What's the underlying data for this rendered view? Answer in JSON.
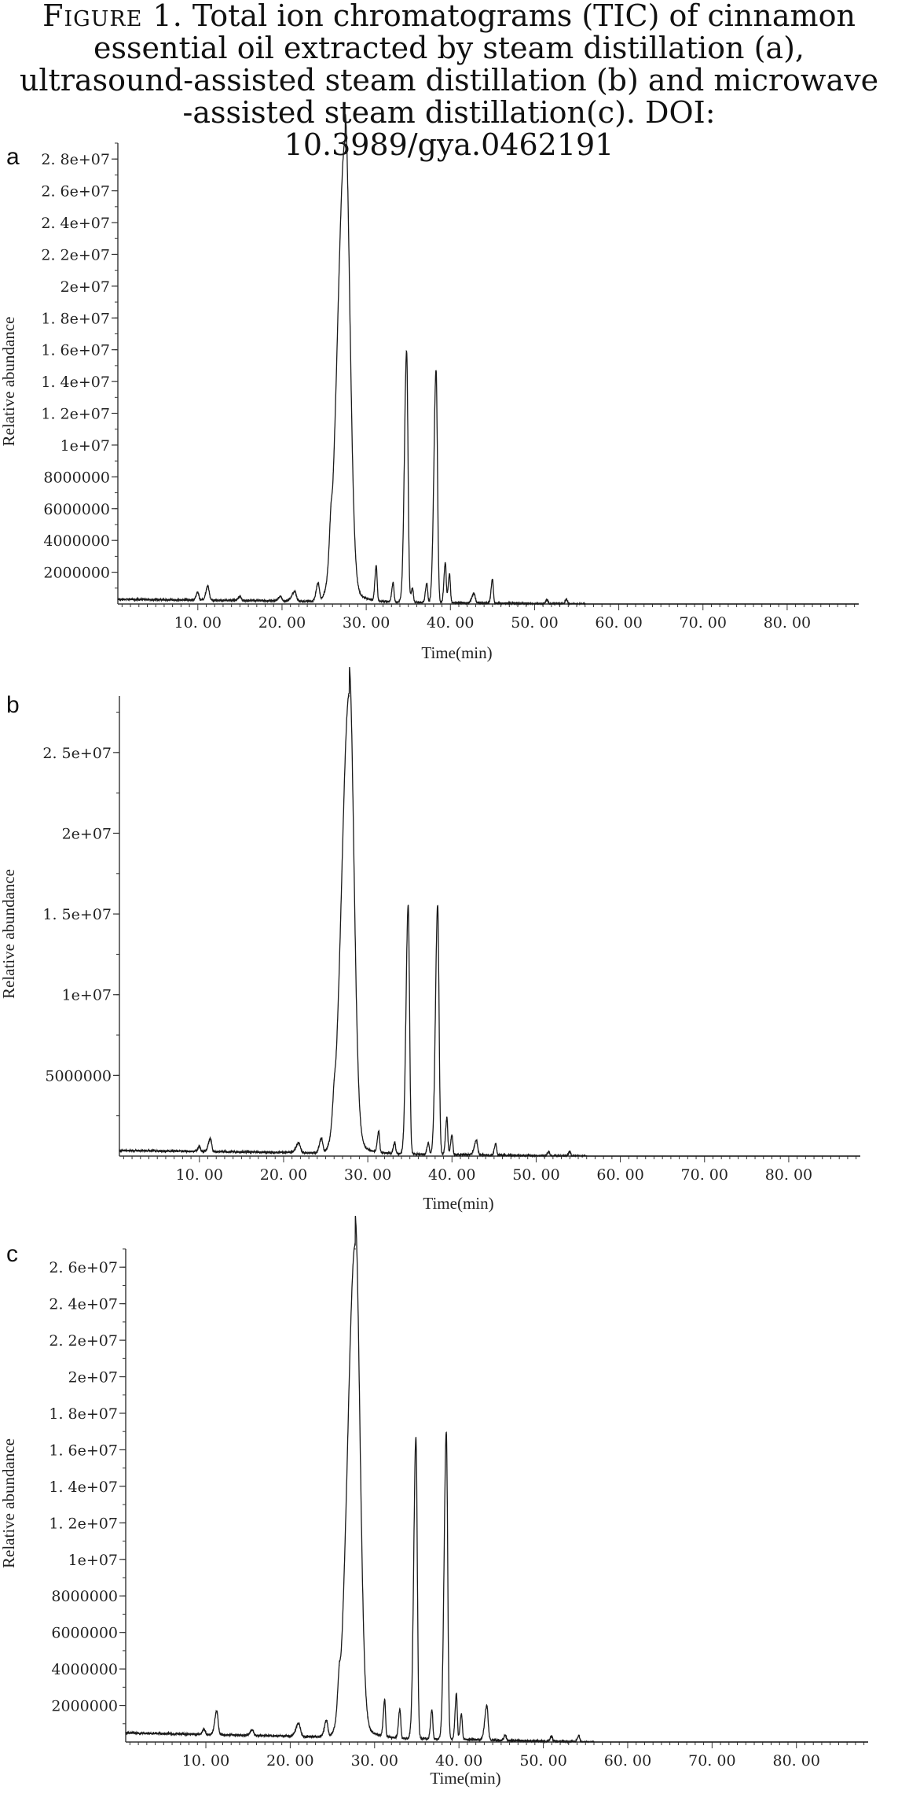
{
  "caption": {
    "figure_label": "Figure 1.",
    "text": "Total ion chromatograms (TIC) of cinnamon essential oil extracted by steam distillation (a), ultrasound-assisted steam distillation (b) and microwave -assisted steam distillation(c). DOI: 10.3989/gya.0462191"
  },
  "colors": {
    "trace": "#1a1a1a",
    "axis": "#333333"
  },
  "chart_data": [
    {
      "panel": "a",
      "type": "line",
      "xlabel": "Time(min)",
      "ylabel": "Relative abundance",
      "xlim": [
        0.5,
        88.5
      ],
      "ylim": [
        0,
        29000000
      ],
      "x_ticks": [
        10,
        20,
        30,
        40,
        50,
        60,
        70,
        80
      ],
      "x_tick_labels": [
        "10. 00",
        "20. 00",
        "30. 00",
        "40. 00",
        "50. 00",
        "60. 00",
        "70. 00",
        "80. 00"
      ],
      "y_ticks": [
        2000000,
        4000000,
        6000000,
        8000000,
        10000000,
        12000000,
        14000000,
        16000000,
        18000000,
        20000000,
        22000000,
        24000000,
        26000000,
        28000000
      ],
      "y_tick_labels": [
        "2000000",
        "4000000",
        "6000000",
        "8000000",
        "1e+07",
        "1. 2e+07",
        "1. 4e+07",
        "1. 6e+07",
        "1. 8e+07",
        "2e+07",
        "2. 2e+07",
        "2. 4e+07",
        "2. 6e+07",
        "2. 8e+07"
      ],
      "baseline": {
        "start": 300000,
        "end": 0,
        "end_time": 55
      },
      "peaks": [
        {
          "t": 10.0,
          "h": 500000,
          "w": 0.12
        },
        {
          "t": 11.2,
          "h": 900000,
          "w": 0.15
        },
        {
          "t": 15.0,
          "h": 250000,
          "w": 0.15
        },
        {
          "t": 19.8,
          "h": 300000,
          "w": 0.15
        },
        {
          "t": 21.5,
          "h": 600000,
          "w": 0.2
        },
        {
          "t": 24.3,
          "h": 1100000,
          "w": 0.15
        },
        {
          "t": 25.8,
          "h": 1500000,
          "w": 0.12
        },
        {
          "t": 27.5,
          "h": 29000000,
          "w": 0.55
        },
        {
          "t": 31.2,
          "h": 2200000,
          "w": 0.1
        },
        {
          "t": 33.2,
          "h": 1200000,
          "w": 0.1
        },
        {
          "t": 34.8,
          "h": 15800000,
          "w": 0.16
        },
        {
          "t": 35.5,
          "h": 900000,
          "w": 0.1
        },
        {
          "t": 37.2,
          "h": 1200000,
          "w": 0.1
        },
        {
          "t": 38.3,
          "h": 14600000,
          "w": 0.16
        },
        {
          "t": 39.4,
          "h": 2500000,
          "w": 0.1
        },
        {
          "t": 39.9,
          "h": 1800000,
          "w": 0.1
        },
        {
          "t": 42.8,
          "h": 600000,
          "w": 0.15
        },
        {
          "t": 45.0,
          "h": 1500000,
          "w": 0.1
        },
        {
          "t": 51.5,
          "h": 250000,
          "w": 0.1
        },
        {
          "t": 53.8,
          "h": 300000,
          "w": 0.1
        }
      ]
    },
    {
      "panel": "b",
      "type": "line",
      "xlabel": "Time(min)",
      "ylabel": "Relative abundance",
      "xlim": [
        0.5,
        88.5
      ],
      "ylim": [
        0,
        28500000
      ],
      "x_ticks": [
        10,
        20,
        30,
        40,
        50,
        60,
        70,
        80
      ],
      "x_tick_labels": [
        "10. 00",
        "20. 00",
        "30. 00",
        "40. 00",
        "50. 00",
        "60. 00",
        "70. 00",
        "80. 00"
      ],
      "y_ticks": [
        5000000,
        10000000,
        15000000,
        20000000,
        25000000
      ],
      "y_tick_labels": [
        "5000000",
        "1e+07",
        "1. 5e+07",
        "2e+07",
        "2. 5e+07"
      ],
      "baseline": {
        "start": 350000,
        "end": 0,
        "end_time": 55
      },
      "peaks": [
        {
          "t": 10.0,
          "h": 300000,
          "w": 0.12
        },
        {
          "t": 11.3,
          "h": 800000,
          "w": 0.15
        },
        {
          "t": 21.8,
          "h": 600000,
          "w": 0.2
        },
        {
          "t": 24.5,
          "h": 900000,
          "w": 0.15
        },
        {
          "t": 26.0,
          "h": 1000000,
          "w": 0.12
        },
        {
          "t": 27.8,
          "h": 28500000,
          "w": 0.55
        },
        {
          "t": 31.3,
          "h": 1300000,
          "w": 0.1
        },
        {
          "t": 33.2,
          "h": 700000,
          "w": 0.1
        },
        {
          "t": 34.8,
          "h": 15400000,
          "w": 0.16
        },
        {
          "t": 37.2,
          "h": 700000,
          "w": 0.1
        },
        {
          "t": 38.3,
          "h": 15400000,
          "w": 0.16
        },
        {
          "t": 39.4,
          "h": 2300000,
          "w": 0.1
        },
        {
          "t": 40.0,
          "h": 1200000,
          "w": 0.1
        },
        {
          "t": 42.9,
          "h": 900000,
          "w": 0.15
        },
        {
          "t": 45.2,
          "h": 700000,
          "w": 0.1
        },
        {
          "t": 51.5,
          "h": 250000,
          "w": 0.1
        },
        {
          "t": 54.0,
          "h": 300000,
          "w": 0.1
        }
      ]
    },
    {
      "panel": "c",
      "type": "line",
      "xlabel": "Time(min)",
      "ylabel": "Relative abundance",
      "xlim": [
        0.5,
        88.5
      ],
      "ylim": [
        0,
        27000000
      ],
      "x_ticks": [
        10,
        20,
        30,
        40,
        50,
        60,
        70,
        80
      ],
      "x_tick_labels": [
        "10. 00",
        "20. 00",
        "30. 00",
        "40. 00",
        "50. 00",
        "60. 00",
        "70. 00",
        "80. 00"
      ],
      "y_ticks": [
        2000000,
        4000000,
        6000000,
        8000000,
        10000000,
        12000000,
        14000000,
        16000000,
        18000000,
        20000000,
        22000000,
        24000000,
        26000000
      ],
      "y_tick_labels": [
        "2000000",
        "4000000",
        "6000000",
        "8000000",
        "1e+07",
        "1. 2e+07",
        "1. 4e+07",
        "1. 6e+07",
        "1. 8e+07",
        "2e+07",
        "2. 2e+07",
        "2. 4e+07",
        "2. 6e+07"
      ],
      "baseline": {
        "start": 500000,
        "end": 0,
        "end_time": 55
      },
      "peaks": [
        {
          "t": 9.8,
          "h": 300000,
          "w": 0.12
        },
        {
          "t": 11.3,
          "h": 1300000,
          "w": 0.15
        },
        {
          "t": 15.5,
          "h": 300000,
          "w": 0.15
        },
        {
          "t": 21.0,
          "h": 700000,
          "w": 0.2
        },
        {
          "t": 24.3,
          "h": 900000,
          "w": 0.15
        },
        {
          "t": 25.8,
          "h": 1300000,
          "w": 0.12
        },
        {
          "t": 27.7,
          "h": 27000000,
          "w": 0.55
        },
        {
          "t": 31.2,
          "h": 2000000,
          "w": 0.1
        },
        {
          "t": 33.0,
          "h": 1600000,
          "w": 0.1
        },
        {
          "t": 34.9,
          "h": 16500000,
          "w": 0.16
        },
        {
          "t": 36.8,
          "h": 1600000,
          "w": 0.1
        },
        {
          "t": 38.5,
          "h": 16800000,
          "w": 0.16
        },
        {
          "t": 39.7,
          "h": 2500000,
          "w": 0.1
        },
        {
          "t": 40.3,
          "h": 1400000,
          "w": 0.1
        },
        {
          "t": 43.3,
          "h": 1900000,
          "w": 0.15
        },
        {
          "t": 45.5,
          "h": 300000,
          "w": 0.1
        },
        {
          "t": 51.0,
          "h": 300000,
          "w": 0.1
        },
        {
          "t": 54.2,
          "h": 350000,
          "w": 0.1
        }
      ]
    }
  ]
}
